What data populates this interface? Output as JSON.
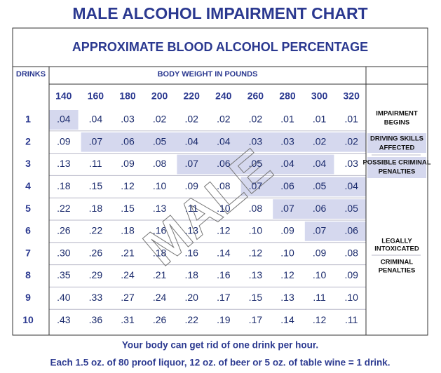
{
  "title": "MALE ALCOHOL IMPAIRMENT CHART",
  "subtitle": "APPROXIMATE BLOOD ALCOHOL PERCENTAGE",
  "table": {
    "drinks_header": "DRINKS",
    "weight_header": "BODY WEIGHT IN POUNDS",
    "weights": [
      "140",
      "160",
      "180",
      "200",
      "220",
      "240",
      "260",
      "280",
      "300",
      "320"
    ],
    "drinks": [
      "1",
      "2",
      "3",
      "4",
      "5",
      "6",
      "7",
      "8",
      "9",
      "10"
    ],
    "rows": [
      [
        ".04",
        ".04",
        ".03",
        ".02",
        ".02",
        ".02",
        ".02",
        ".01",
        ".01",
        ".01"
      ],
      [
        ".09",
        ".07",
        ".06",
        ".05",
        ".04",
        ".04",
        ".03",
        ".03",
        ".02",
        ".02"
      ],
      [
        ".13",
        ".11",
        ".09",
        ".08",
        ".07",
        ".06",
        ".05",
        ".04",
        ".04",
        ".03"
      ],
      [
        ".18",
        ".15",
        ".12",
        ".10",
        ".09",
        ".08",
        ".07",
        ".06",
        ".05",
        ".04"
      ],
      [
        ".22",
        ".18",
        ".15",
        ".13",
        ".11",
        ".10",
        ".08",
        ".07",
        ".06",
        ".05"
      ],
      [
        ".26",
        ".22",
        ".18",
        ".16",
        ".13",
        ".12",
        ".10",
        ".09",
        ".07",
        ".06"
      ],
      [
        ".30",
        ".26",
        ".21",
        ".18",
        ".16",
        ".14",
        ".12",
        ".10",
        ".09",
        ".08"
      ],
      [
        ".35",
        ".29",
        ".24",
        ".21",
        ".18",
        ".16",
        ".13",
        ".12",
        ".10",
        ".09"
      ],
      [
        ".40",
        ".33",
        ".27",
        ".24",
        ".20",
        ".17",
        ".15",
        ".13",
        ".11",
        ".10"
      ],
      [
        ".43",
        ".36",
        ".31",
        ".26",
        ".22",
        ".19",
        ".17",
        ".14",
        ".12",
        ".11"
      ]
    ],
    "legend": [
      [
        "IMPAIRMENT",
        "BEGINS"
      ],
      [
        "DRIVING SKILLS",
        "AFFECTED"
      ],
      [
        "POSSIBLE CRIMINAL",
        "PENALTIES"
      ],
      [
        "LEGALLY",
        "INTOXICATED"
      ],
      [
        "CRIMINAL",
        "PENALTIES"
      ]
    ]
  },
  "watermark": "MALE",
  "footer": [
    "Your body can get rid of one drink per hour.",
    "Each 1.5 oz. of 80 proof liquor, 12 oz. of beer or 5 oz. of table wine = 1 drink."
  ]
}
